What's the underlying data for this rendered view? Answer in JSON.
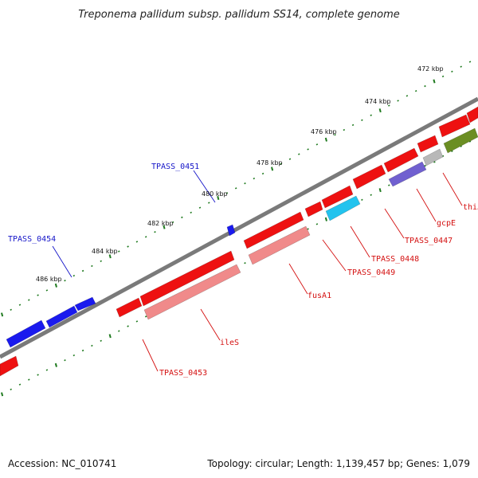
{
  "title": "Treponema pallidum subsp. pallidum SS14, complete genome",
  "footer": {
    "accession": "Accession: NC_010741",
    "summary": "Topology: circular; Length: 1,139,457 bp; Genes: 1,079"
  },
  "ticks": [
    "472 kbp",
    "474 kbp",
    "476 kbp",
    "478 kbp",
    "480 kbp",
    "482 kbp",
    "484 kbp",
    "486 kbp"
  ],
  "colors": {
    "backbone": "#7a7a7a",
    "tick": "#1f7a1f",
    "forward": "#1a1aee",
    "reverse": "#ee1111",
    "rrna": "#f08a8a",
    "trna": "#22c3ee",
    "purple": "#7060d0",
    "gray": "#b8b8b8",
    "olive": "#6b8e23",
    "label_forward": "#1515c8",
    "label_reverse": "#d41010"
  },
  "labels": {
    "forward": [
      "TPASS_0451",
      "TPASS_0454"
    ],
    "reverse": [
      "TPASS_0453",
      "ileS",
      "fusA1",
      "TPASS_0449",
      "TPASS_0448",
      "TPASS_0447",
      "gcpE",
      "thiJ"
    ]
  }
}
